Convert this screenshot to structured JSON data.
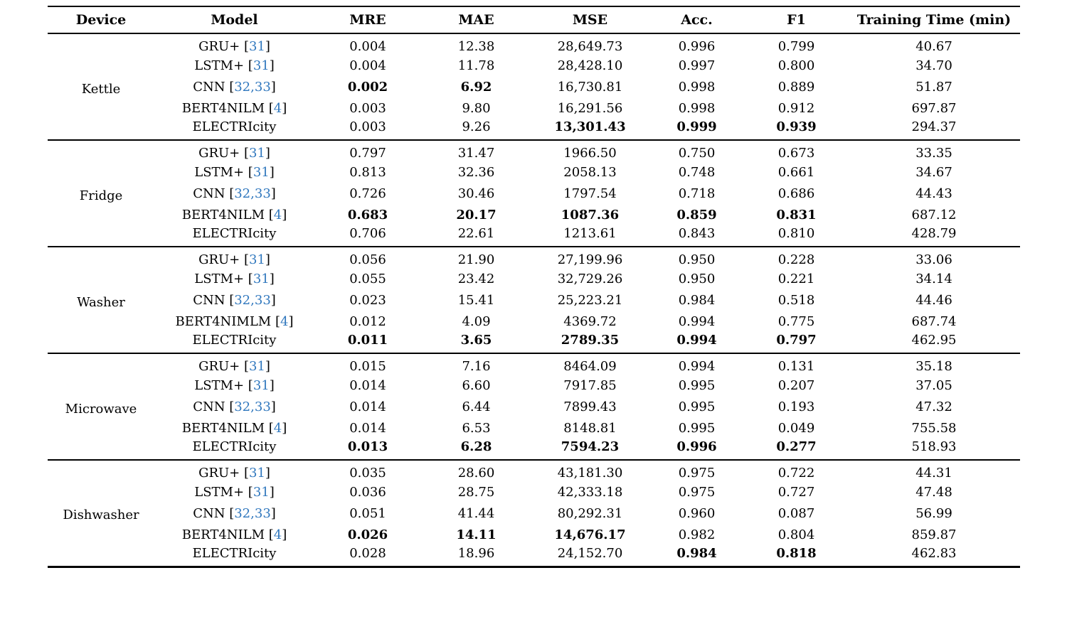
{
  "table": {
    "citation_color": "#3178be",
    "columns": [
      "Device",
      "Model",
      "MRE",
      "MAE",
      "MSE",
      "Acc.",
      "F1",
      "Training Time (min)"
    ],
    "sections": [
      {
        "device": "Kettle",
        "rows": [
          {
            "model": "GRU+",
            "cite": "31",
            "values": [
              "0.004",
              "12.38",
              "28,649.73",
              "0.996",
              "0.799",
              "40.67"
            ],
            "bold": [
              false,
              false,
              false,
              false,
              false,
              false
            ]
          },
          {
            "model": "LSTM+",
            "cite": "31",
            "values": [
              "0.004",
              "11.78",
              "28,428.10",
              "0.997",
              "0.800",
              "34.70"
            ],
            "bold": [
              false,
              false,
              false,
              false,
              false,
              false
            ]
          },
          {
            "model": "CNN",
            "cite": "32,33",
            "values": [
              "0.002",
              "6.92",
              "16,730.81",
              "0.998",
              "0.889",
              "51.87"
            ],
            "bold": [
              true,
              true,
              false,
              false,
              false,
              false
            ]
          },
          {
            "model": "BERT4NILM",
            "cite": "4",
            "values": [
              "0.003",
              "9.80",
              "16,291.56",
              "0.998",
              "0.912",
              "697.87"
            ],
            "bold": [
              false,
              false,
              false,
              false,
              false,
              false
            ]
          },
          {
            "model": "ELECTRIcity",
            "cite": "",
            "values": [
              "0.003",
              "9.26",
              "13,301.43",
              "0.999",
              "0.939",
              "294.37"
            ],
            "bold": [
              false,
              false,
              true,
              true,
              true,
              false
            ]
          }
        ]
      },
      {
        "device": "Fridge",
        "rows": [
          {
            "model": "GRU+",
            "cite": "31",
            "values": [
              "0.797",
              "31.47",
              "1966.50",
              "0.750",
              "0.673",
              "33.35"
            ],
            "bold": [
              false,
              false,
              false,
              false,
              false,
              false
            ]
          },
          {
            "model": "LSTM+",
            "cite": "31",
            "values": [
              "0.813",
              "32.36",
              "2058.13",
              "0.748",
              "0.661",
              "34.67"
            ],
            "bold": [
              false,
              false,
              false,
              false,
              false,
              false
            ]
          },
          {
            "model": "CNN",
            "cite": "32,33",
            "values": [
              "0.726",
              "30.46",
              "1797.54",
              "0.718",
              "0.686",
              "44.43"
            ],
            "bold": [
              false,
              false,
              false,
              false,
              false,
              false
            ]
          },
          {
            "model": "BERT4NILM",
            "cite": "4",
            "values": [
              "0.683",
              "20.17",
              "1087.36",
              "0.859",
              "0.831",
              "687.12"
            ],
            "bold": [
              true,
              true,
              true,
              true,
              true,
              false
            ]
          },
          {
            "model": "ELECTRIcity",
            "cite": "",
            "values": [
              "0.706",
              "22.61",
              "1213.61",
              "0.843",
              "0.810",
              "428.79"
            ],
            "bold": [
              false,
              false,
              false,
              false,
              false,
              false
            ]
          }
        ]
      },
      {
        "device": "Washer",
        "rows": [
          {
            "model": "GRU+",
            "cite": "31",
            "values": [
              "0.056",
              "21.90",
              "27,199.96",
              "0.950",
              "0.228",
              "33.06"
            ],
            "bold": [
              false,
              false,
              false,
              false,
              false,
              false
            ]
          },
          {
            "model": "LSTM+",
            "cite": "31",
            "values": [
              "0.055",
              "23.42",
              "32,729.26",
              "0.950",
              "0.221",
              "34.14"
            ],
            "bold": [
              false,
              false,
              false,
              false,
              false,
              false
            ]
          },
          {
            "model": "CNN",
            "cite": "32,33",
            "values": [
              "0.023",
              "15.41",
              "25,223.21",
              "0.984",
              "0.518",
              "44.46"
            ],
            "bold": [
              false,
              false,
              false,
              false,
              false,
              false
            ]
          },
          {
            "model": "BERT4NIMLM",
            "cite": "4",
            "values": [
              "0.012",
              "4.09",
              "4369.72",
              "0.994",
              "0.775",
              "687.74"
            ],
            "bold": [
              false,
              false,
              false,
              false,
              false,
              false
            ]
          },
          {
            "model": "ELECTRIcity",
            "cite": "",
            "values": [
              "0.011",
              "3.65",
              "2789.35",
              "0.994",
              "0.797",
              "462.95"
            ],
            "bold": [
              true,
              true,
              true,
              true,
              true,
              false
            ]
          }
        ]
      },
      {
        "device": "Microwave",
        "rows": [
          {
            "model": "GRU+",
            "cite": "31",
            "values": [
              "0.015",
              "7.16",
              "8464.09",
              "0.994",
              "0.131",
              "35.18"
            ],
            "bold": [
              false,
              false,
              false,
              false,
              false,
              false
            ]
          },
          {
            "model": "LSTM+",
            "cite": "31",
            "values": [
              "0.014",
              "6.60",
              "7917.85",
              "0.995",
              "0.207",
              "37.05"
            ],
            "bold": [
              false,
              false,
              false,
              false,
              false,
              false
            ]
          },
          {
            "model": "CNN",
            "cite": "32,33",
            "values": [
              "0.014",
              "6.44",
              "7899.43",
              "0.995",
              "0.193",
              "47.32"
            ],
            "bold": [
              false,
              false,
              false,
              false,
              false,
              false
            ]
          },
          {
            "model": "BERT4NILM",
            "cite": "4",
            "values": [
              "0.014",
              "6.53",
              "8148.81",
              "0.995",
              "0.049",
              "755.58"
            ],
            "bold": [
              false,
              false,
              false,
              false,
              false,
              false
            ]
          },
          {
            "model": "ELECTRIcity",
            "cite": "",
            "values": [
              "0.013",
              "6.28",
              "7594.23",
              "0.996",
              "0.277",
              "518.93"
            ],
            "bold": [
              true,
              true,
              true,
              true,
              true,
              false
            ]
          }
        ]
      },
      {
        "device": "Dishwasher",
        "rows": [
          {
            "model": "GRU+",
            "cite": "31",
            "values": [
              "0.035",
              "28.60",
              "43,181.30",
              "0.975",
              "0.722",
              "44.31"
            ],
            "bold": [
              false,
              false,
              false,
              false,
              false,
              false
            ]
          },
          {
            "model": "LSTM+",
            "cite": "31",
            "values": [
              "0.036",
              "28.75",
              "42,333.18",
              "0.975",
              "0.727",
              "47.48"
            ],
            "bold": [
              false,
              false,
              false,
              false,
              false,
              false
            ]
          },
          {
            "model": "CNN",
            "cite": "32,33",
            "values": [
              "0.051",
              "41.44",
              "80,292.31",
              "0.960",
              "0.087",
              "56.99"
            ],
            "bold": [
              false,
              false,
              false,
              false,
              false,
              false
            ]
          },
          {
            "model": "BERT4NILM",
            "cite": "4",
            "values": [
              "0.026",
              "14.11",
              "14,676.17",
              "0.982",
              "0.804",
              "859.87"
            ],
            "bold": [
              true,
              true,
              true,
              false,
              false,
              false
            ]
          },
          {
            "model": "ELECTRIcity",
            "cite": "",
            "values": [
              "0.028",
              "18.96",
              "24,152.70",
              "0.984",
              "0.818",
              "462.83"
            ],
            "bold": [
              false,
              false,
              false,
              true,
              true,
              false
            ]
          }
        ]
      }
    ]
  }
}
